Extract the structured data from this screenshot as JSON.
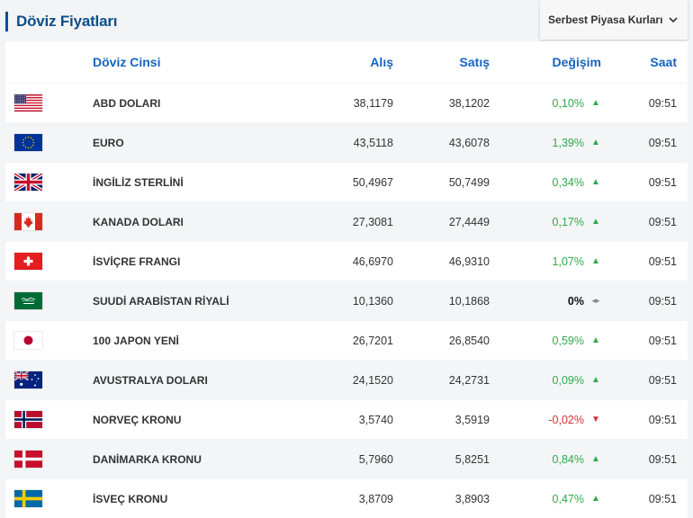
{
  "header": {
    "title": "Döviz Fiyatları",
    "market_select": {
      "selected": "Serbest Piyasa Kurları"
    }
  },
  "table": {
    "columns": {
      "name": "Döviz Cinsi",
      "buy": "Alış",
      "sell": "Satış",
      "change": "Değişim",
      "time": "Saat"
    },
    "rows": [
      {
        "flag": "usa-flag-icon",
        "name": "ABD DOLARI",
        "buy": "38,1179",
        "sell": "38,1202",
        "change": "0,10%",
        "dir": "up",
        "time": "09:51"
      },
      {
        "flag": "eu-flag-icon",
        "name": "EURO",
        "buy": "43,5118",
        "sell": "43,6078",
        "change": "1,39%",
        "dir": "up",
        "time": "09:51"
      },
      {
        "flag": "uk-flag-icon",
        "name": "İNGİLİZ STERLİNİ",
        "buy": "50,4967",
        "sell": "50,7499",
        "change": "0,34%",
        "dir": "up",
        "time": "09:51"
      },
      {
        "flag": "canada-flag-icon",
        "name": "KANADA DOLARI",
        "buy": "27,3081",
        "sell": "27,4449",
        "change": "0,17%",
        "dir": "up",
        "time": "09:51"
      },
      {
        "flag": "switzerland-flag-icon",
        "name": "İSVİÇRE FRANGI",
        "buy": "46,6970",
        "sell": "46,9310",
        "change": "1,07%",
        "dir": "up",
        "time": "09:51"
      },
      {
        "flag": "saudi-flag-icon",
        "name": "SUUDİ ARABİSTAN RİYALİ",
        "buy": "10,1360",
        "sell": "10,1868",
        "change": "0%",
        "dir": "flat",
        "time": "09:51"
      },
      {
        "flag": "japan-flag-icon",
        "name": "100 JAPON YENİ",
        "buy": "26,7201",
        "sell": "26,8540",
        "change": "0,59%",
        "dir": "up",
        "time": "09:51"
      },
      {
        "flag": "australia-flag-icon",
        "name": "AVUSTRALYA DOLARI",
        "buy": "24,1520",
        "sell": "24,2731",
        "change": "0,09%",
        "dir": "up",
        "time": "09:51"
      },
      {
        "flag": "norway-flag-icon",
        "name": "NORVEÇ KRONU",
        "buy": "3,5740",
        "sell": "3,5919",
        "change": "-0,02%",
        "dir": "down",
        "time": "09:51"
      },
      {
        "flag": "denmark-flag-icon",
        "name": "DANİMARKA KRONU",
        "buy": "5,7960",
        "sell": "5,8251",
        "change": "0,84%",
        "dir": "up",
        "time": "09:51"
      },
      {
        "flag": "sweden-flag-icon",
        "name": "İSVEÇ KRONU",
        "buy": "3,8709",
        "sell": "3,8903",
        "change": "0,47%",
        "dir": "up",
        "time": "09:51"
      }
    ]
  },
  "colors": {
    "up": "#2eaa4a",
    "down": "#d32f2f",
    "header_text": "#1565c0",
    "title": "#0d4f8b"
  }
}
